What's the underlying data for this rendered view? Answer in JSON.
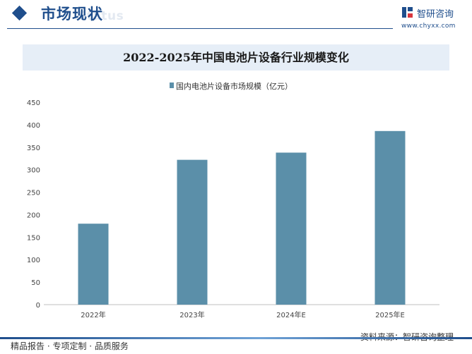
{
  "header": {
    "section_title": "市场现状",
    "section_ghost": "Status",
    "logo_name": "智研咨询",
    "logo_url": "www.chyxx.com"
  },
  "chart_data": {
    "type": "bar",
    "title": "2022-2025年中国电池片设备行业规模变化",
    "categories": [
      "2022年",
      "2023年",
      "2024年E",
      "2025年E"
    ],
    "series": [
      {
        "name": "国内电池片设备市场规模（亿元）",
        "values": [
          180,
          322,
          338,
          386
        ]
      }
    ],
    "ylim": [
      0,
      450
    ],
    "yticks": [
      0,
      50,
      100,
      150,
      200,
      250,
      300,
      350,
      400,
      450
    ],
    "grid": false,
    "legend": "top",
    "colors": {
      "bar": "#5b8fa9"
    }
  },
  "footer": {
    "left_text": "精品报告 · 专项定制 · 品质服务",
    "source_text": "资料来源：智研咨询整理"
  }
}
